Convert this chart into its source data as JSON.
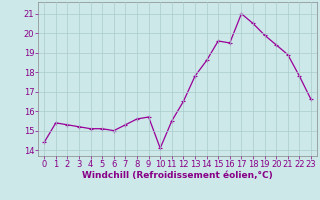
{
  "x": [
    0,
    1,
    2,
    3,
    4,
    5,
    6,
    7,
    8,
    9,
    10,
    11,
    12,
    13,
    14,
    15,
    16,
    17,
    18,
    19,
    20,
    21,
    22,
    23
  ],
  "y": [
    14.4,
    15.4,
    15.3,
    15.2,
    15.1,
    15.1,
    15.0,
    15.3,
    15.6,
    15.7,
    14.1,
    15.5,
    16.5,
    17.8,
    18.6,
    19.6,
    19.5,
    21.0,
    20.5,
    19.9,
    19.4,
    18.9,
    17.8,
    16.6
  ],
  "line_color": "#990099",
  "marker": "+",
  "bg_color": "#cce8e8",
  "grid_color": "#aacccc",
  "xlabel": "Windchill (Refroidissement éolien,°C)",
  "xlabel_color": "#880088",
  "tick_color": "#880088",
  "yticks": [
    14,
    15,
    16,
    17,
    18,
    19,
    20,
    21
  ],
  "xticks": [
    0,
    1,
    2,
    3,
    4,
    5,
    6,
    7,
    8,
    9,
    10,
    11,
    12,
    13,
    14,
    15,
    16,
    17,
    18,
    19,
    20,
    21,
    22,
    23
  ],
  "ylim": [
    13.7,
    21.6
  ],
  "xlim": [
    -0.5,
    23.5
  ],
  "tick_fontsize": 6,
  "xlabel_fontsize": 6.5,
  "linewidth": 0.9,
  "markersize": 3,
  "markeredgewidth": 0.8
}
